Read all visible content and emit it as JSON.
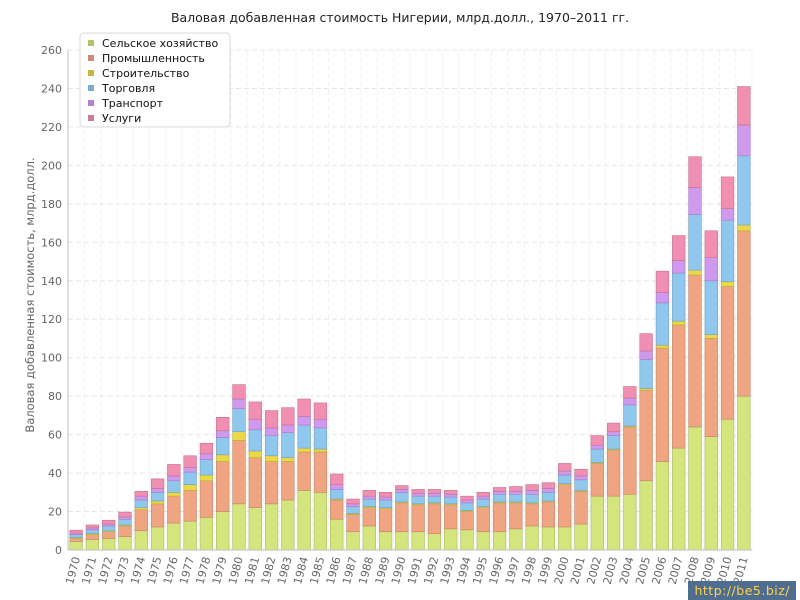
{
  "chart_data": {
    "type": "bar",
    "stacked": true,
    "title": "Валовая добавленная стоимость Нигерии, млрд.долл., 1970–2011 гг.",
    "ylabel": "Валовая добавленная стоимость, млрд.долл.",
    "xlabel": "",
    "ylim": [
      0,
      260
    ],
    "yticks": [
      0,
      20,
      40,
      60,
      80,
      100,
      120,
      140,
      160,
      180,
      200,
      220,
      240,
      260
    ],
    "grid": true,
    "legend_position": "top-left",
    "categories": [
      "1970",
      "1971",
      "1972",
      "1973",
      "1974",
      "1975",
      "1976",
      "1977",
      "1978",
      "1979",
      "1980",
      "1981",
      "1982",
      "1983",
      "1984",
      "1985",
      "1986",
      "1987",
      "1988",
      "1989",
      "1990",
      "1991",
      "1992",
      "1993",
      "1994",
      "1995",
      "1996",
      "1997",
      "1998",
      "1999",
      "2000",
      "2001",
      "2002",
      "2003",
      "2004",
      "2005",
      "2006",
      "2007",
      "2008",
      "2009",
      "2010",
      "2011"
    ],
    "series": [
      {
        "name": "Сельское хозяйство",
        "color": "#d4e57e",
        "values": [
          4.5,
          5.5,
          6.0,
          7.0,
          10.0,
          12.0,
          14.0,
          15.0,
          17.0,
          20.0,
          24.0,
          22.0,
          24.0,
          26.0,
          31.0,
          30.0,
          16.0,
          9.5,
          12.5,
          9.5,
          9.5,
          9.5,
          8.5,
          11.0,
          10.5,
          9.5,
          9.5,
          11.0,
          12.5,
          12.0,
          12.0,
          13.5,
          28.0,
          28.0,
          29.0,
          36.0,
          46.0,
          53.0,
          64.0,
          59.0,
          68.0,
          80.0
        ]
      },
      {
        "name": "Промышленность",
        "color": "#f0a582",
        "values": [
          1.5,
          2.5,
          3.5,
          5.5,
          11.0,
          12.0,
          14.0,
          16.0,
          19.0,
          26.0,
          33.0,
          26.0,
          22.0,
          20.0,
          20.0,
          21.0,
          10.0,
          9.0,
          9.5,
          12.0,
          15.0,
          14.0,
          15.5,
          12.5,
          9.5,
          12.5,
          15.0,
          13.5,
          11.5,
          13.0,
          22.0,
          17.0,
          17.0,
          24.0,
          35.0,
          47.0,
          59.0,
          64.0,
          79.0,
          51.0,
          69.0,
          86.0
        ]
      },
      {
        "name": "Строительство",
        "color": "#ead848",
        "values": [
          0.5,
          0.5,
          0.5,
          0.5,
          1.0,
          1.5,
          2.0,
          3.0,
          3.0,
          3.5,
          4.5,
          3.5,
          3.0,
          2.0,
          2.0,
          1.5,
          0.5,
          0.5,
          0.5,
          0.5,
          0.5,
          0.5,
          0.5,
          0.5,
          0.5,
          0.5,
          0.5,
          0.5,
          0.5,
          0.5,
          0.5,
          0.5,
          0.5,
          0.5,
          0.5,
          1.0,
          1.5,
          2.0,
          2.5,
          2.0,
          2.5,
          3.0
        ]
      },
      {
        "name": "Торговля",
        "color": "#8fc8ec",
        "values": [
          1.5,
          2.0,
          2.5,
          3.0,
          4.0,
          4.5,
          6.0,
          6.5,
          8.0,
          9.0,
          12.0,
          11.0,
          10.5,
          13.0,
          12.0,
          11.0,
          5.0,
          3.5,
          4.0,
          4.0,
          5.0,
          4.0,
          3.5,
          3.5,
          4.0,
          4.0,
          4.0,
          4.0,
          4.5,
          4.5,
          4.5,
          5.5,
          7.0,
          7.0,
          11.0,
          15.0,
          22.0,
          25.0,
          29.0,
          28.0,
          32.0,
          36.0
        ]
      },
      {
        "name": "Транспорт",
        "color": "#cf9aee",
        "values": [
          0.8,
          1.0,
          1.0,
          1.2,
          2.0,
          2.0,
          2.5,
          2.5,
          3.0,
          3.5,
          5.0,
          5.5,
          4.0,
          4.0,
          4.5,
          4.5,
          2.5,
          1.5,
          1.5,
          1.5,
          1.5,
          1.5,
          1.5,
          1.5,
          1.5,
          1.5,
          1.5,
          1.5,
          2.0,
          2.0,
          2.0,
          2.0,
          2.0,
          2.0,
          3.5,
          4.5,
          5.5,
          6.5,
          14.0,
          12.0,
          6.0,
          16.0
        ]
      },
      {
        "name": "Услуги",
        "color": "#f18fb3",
        "values": [
          1.5,
          1.5,
          2.0,
          2.5,
          2.5,
          5.0,
          6.0,
          6.0,
          5.5,
          7.0,
          7.5,
          9.0,
          9.0,
          9.0,
          9.0,
          8.5,
          5.5,
          2.5,
          3.0,
          2.5,
          2.0,
          2.0,
          2.0,
          2.0,
          2.0,
          2.0,
          2.0,
          2.5,
          3.0,
          3.0,
          4.0,
          3.5,
          5.0,
          4.5,
          6.0,
          9.0,
          11.0,
          13.0,
          16.0,
          14.0,
          16.5,
          20.0
        ]
      }
    ]
  },
  "watermark": "http://be5.biz/"
}
